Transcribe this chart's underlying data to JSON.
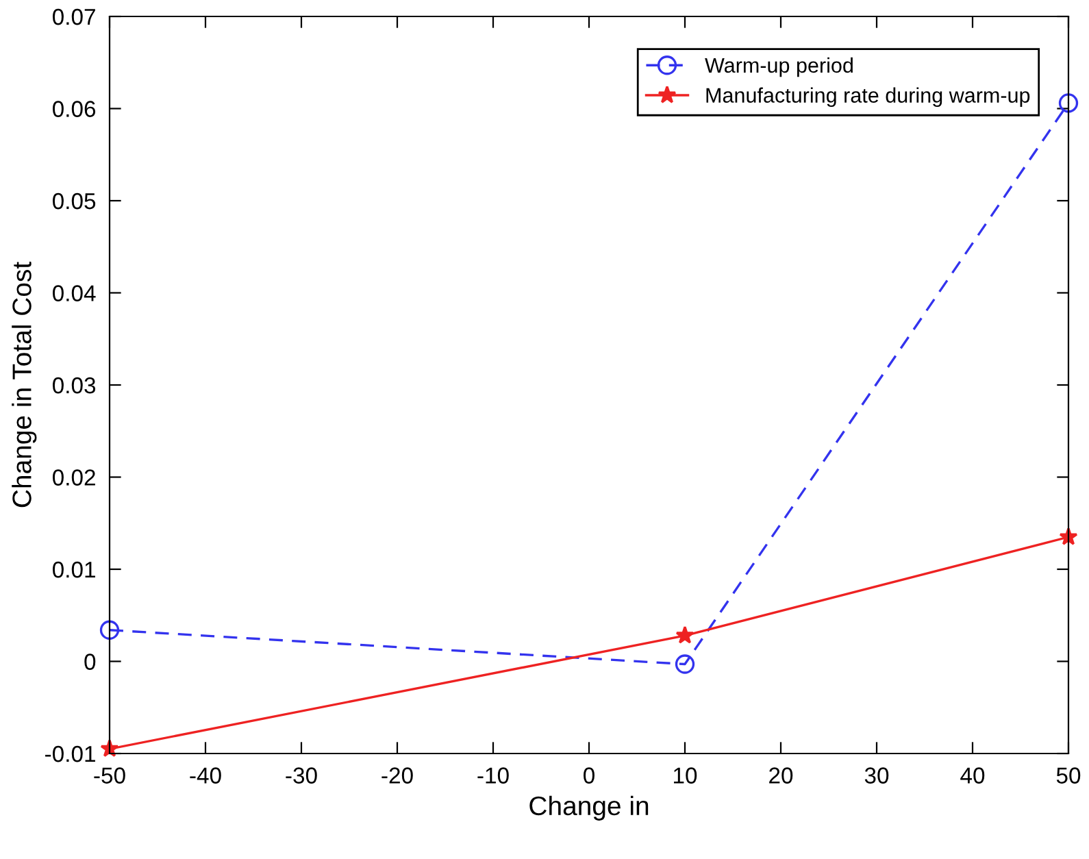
{
  "chart_data": {
    "type": "line",
    "xlabel": "Change in",
    "ylabel": "Change in Total Cost",
    "x": [
      -50,
      10,
      50
    ],
    "series": [
      {
        "name": "Warm-up period",
        "color": "#3333ee",
        "values": [
          0.0034,
          -0.0003,
          0.0606
        ],
        "marker": "circle",
        "line_style": "dashed"
      },
      {
        "name": "Manufacturing rate during warm-up",
        "color": "#ee2222",
        "values": [
          -0.0095,
          0.0028,
          0.0135
        ],
        "marker": "star",
        "line_style": "solid"
      }
    ],
    "xlim": [
      -50,
      50
    ],
    "xticks": [
      -50,
      -40,
      -30,
      -20,
      -10,
      0,
      10,
      20,
      30,
      40,
      50
    ],
    "ylim": [
      -0.01,
      0.07
    ],
    "yticks": [
      -0.01,
      0,
      0.01,
      0.02,
      0.03,
      0.04,
      0.05,
      0.06,
      0.07
    ],
    "grid": false,
    "legend": "top right"
  }
}
